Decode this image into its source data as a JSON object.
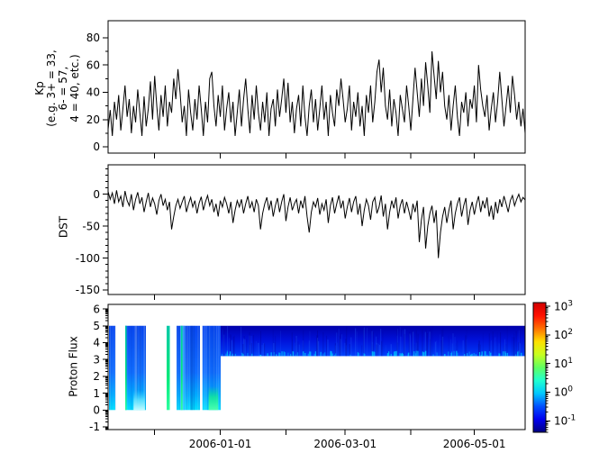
{
  "figure": {
    "background": "#ffffff",
    "line_color": "#000000"
  },
  "panels": [
    {
      "name": "kp",
      "ylabel": "Kp\n(e.g. 3+ = 33,\n6- = 57,\n4 = 40, etc.)",
      "yticks": [
        0,
        20,
        40,
        60,
        80
      ],
      "ytick_labels": [
        "0",
        "20",
        "40",
        "60",
        "80"
      ],
      "yminor": [
        10,
        30,
        50,
        70
      ],
      "ylim": [
        -4.6,
        92.5
      ]
    },
    {
      "name": "dst",
      "ylabel": "DST",
      "yticks": [
        0,
        -50,
        -100,
        -150
      ],
      "ytick_labels": [
        "0",
        "-50",
        "-100",
        "-150"
      ],
      "yminor": [
        40,
        30,
        20,
        10,
        -10,
        -20,
        -30,
        -40,
        -60,
        -70,
        -80,
        -90,
        -110,
        -120,
        -130,
        -140
      ],
      "ylim": [
        -157,
        46
      ]
    },
    {
      "name": "proton_flux",
      "ylabel": "Proton Flux",
      "yticks": [
        -1,
        0,
        1,
        2,
        3,
        4,
        5,
        6
      ],
      "ytick_labels": [
        "-1",
        "0",
        "1",
        "2",
        "3",
        "4",
        "5",
        "6"
      ],
      "log_minors": true,
      "ylim": [
        -1.16,
        6.27
      ]
    }
  ],
  "xaxis": {
    "xlim_days": [
      0,
      197
    ],
    "ticks_days": [
      22,
      53,
      84,
      112,
      143,
      173
    ],
    "tick_labels": [
      "",
      "2006-01-01",
      "",
      "2006-03-01",
      "",
      "2006-05-01"
    ]
  },
  "colorbar": {
    "scale": "log",
    "colormap": "jet",
    "tick_exponents": [
      3,
      2,
      1,
      0,
      -1
    ],
    "tick_label_base": "10",
    "exp_range": [
      -1.4,
      3.13
    ],
    "gradient_bottom_to_top": [
      "#000080",
      "#0000f0",
      "#0050ff",
      "#00c8ff",
      "#20ffd0",
      "#60ff60",
      "#c8ff20",
      "#ffe000",
      "#ff7000",
      "#ff1000",
      "#d00000"
    ]
  },
  "chart_data": [
    {
      "type": "line",
      "series_name": "Kp",
      "x_unit": "days (0 = left edge, axis ticks at listed tick days)",
      "color": "#000000",
      "values": [
        13,
        27,
        8,
        33,
        20,
        38,
        12,
        28,
        45,
        22,
        35,
        10,
        30,
        18,
        42,
        25,
        8,
        37,
        15,
        28,
        48,
        20,
        52,
        30,
        12,
        38,
        22,
        45,
        15,
        33,
        25,
        50,
        35,
        57,
        40,
        18,
        30,
        8,
        42,
        25,
        12,
        35,
        20,
        45,
        28,
        8,
        33,
        18,
        50,
        55,
        30,
        15,
        38,
        22,
        45,
        12,
        28,
        40,
        18,
        33,
        8,
        25,
        42,
        15,
        35,
        50,
        28,
        10,
        38,
        20,
        45,
        25,
        12,
        33,
        18,
        40,
        8,
        28,
        35,
        15,
        42,
        22,
        35,
        50,
        25,
        47,
        18,
        33,
        10,
        28,
        38,
        15,
        45,
        22,
        8,
        30,
        42,
        18,
        35,
        12,
        28,
        45,
        20,
        33,
        8,
        38,
        25,
        15,
        42,
        30,
        50,
        35,
        18,
        28,
        45,
        12,
        33,
        22,
        40,
        15,
        30,
        8,
        38,
        25,
        45,
        18,
        33,
        55,
        64,
        40,
        58,
        30,
        20,
        42,
        15,
        35,
        25,
        8,
        38,
        28,
        18,
        45,
        30,
        12,
        35,
        58,
        40,
        22,
        50,
        30,
        62,
        45,
        25,
        70,
        52,
        35,
        63,
        40,
        55,
        30,
        20,
        38,
        12,
        30,
        45,
        22,
        8,
        33,
        25,
        40,
        15,
        35,
        28,
        45,
        18,
        60,
        42,
        30,
        22,
        38,
        12,
        28,
        40,
        18,
        33,
        55,
        35,
        15,
        30,
        45,
        25,
        52,
        38,
        20,
        33,
        15,
        28,
        10
      ]
    },
    {
      "type": "line",
      "series_name": "DST",
      "x_unit": "days (0 = left edge, axis ticks at listed tick days)",
      "color": "#000000",
      "values": [
        4,
        -8,
        2,
        -15,
        6,
        -12,
        -3,
        -20,
        5,
        -10,
        -18,
        0,
        -25,
        -8,
        3,
        -15,
        -5,
        -28,
        -12,
        2,
        -20,
        -6,
        -15,
        -32,
        -10,
        0,
        -18,
        -8,
        -25,
        -12,
        -55,
        -35,
        -18,
        -8,
        -22,
        -12,
        -3,
        -28,
        -15,
        -5,
        -20,
        -10,
        -30,
        -14,
        -4,
        -25,
        -12,
        -2,
        -18,
        -8,
        -28,
        -15,
        -35,
        -10,
        -20,
        -5,
        -15,
        -30,
        -12,
        -45,
        -25,
        -10,
        -20,
        -8,
        -30,
        -15,
        -3,
        -22,
        -12,
        -28,
        -8,
        -18,
        -55,
        -30,
        -15,
        -5,
        -25,
        -10,
        -35,
        -18,
        -6,
        -28,
        -12,
        0,
        -42,
        -20,
        -5,
        -25,
        -15,
        -8,
        -30,
        -10,
        -22,
        -3,
        -35,
        -60,
        -28,
        -12,
        -20,
        -6,
        -32,
        -15,
        -25,
        -8,
        -45,
        -18,
        -5,
        -30,
        -15,
        -2,
        -22,
        -10,
        -38,
        -20,
        -6,
        -28,
        -12,
        -3,
        -32,
        -15,
        -50,
        -25,
        -8,
        -18,
        -40,
        -12,
        -5,
        -30,
        -20,
        -2,
        -35,
        -15,
        -55,
        -28,
        -10,
        -22,
        -5,
        -38,
        -18,
        -8,
        -30,
        -12,
        -25,
        -40,
        -15,
        -28,
        -10,
        -75,
        -40,
        -20,
        -85,
        -50,
        -30,
        -18,
        -45,
        -25,
        -100,
        -60,
        -35,
        -20,
        -45,
        -25,
        -10,
        -55,
        -30,
        -15,
        -5,
        -35,
        -18,
        -6,
        -48,
        -25,
        -12,
        -32,
        -15,
        -3,
        -28,
        -10,
        -22,
        -5,
        -35,
        -18,
        -40,
        -12,
        -30,
        -8,
        -20,
        -3,
        -15,
        -28,
        -10,
        -2,
        -18,
        -8,
        0,
        -12,
        -5,
        -9
      ]
    },
    {
      "type": "heatmap",
      "series_name": "Proton Flux",
      "x_unit": "days (0 = left edge, axis ticks at listed tick days)",
      "value_scale": "log10 flux, colorbar 1e-1 .. 1e3",
      "colors": {
        "column_gradient_top_to_bottom": [
          "#0846f0",
          "#0f6dff",
          "#00aaff",
          "#00e0ff"
        ],
        "band_gradient_top_to_bottom": [
          "#0000aa",
          "#0010d8",
          "#0030f0",
          "#0048ff"
        ],
        "green": "#00e87a",
        "cyan_speckle": "#00b4ff"
      },
      "segments": [
        {
          "start_day": 0.43,
          "end_day": 3.4,
          "v_bottom": 0,
          "v_top": 5,
          "style": "column"
        },
        {
          "start_day": 8.09,
          "end_day": 17.87,
          "v_bottom": 0,
          "v_top": 5,
          "style": "column",
          "green_left_edge": true,
          "bright_blob_days": [
            12.0,
            17.4
          ],
          "bright_blob_vmax": 1.2
        },
        {
          "start_day": 27.66,
          "end_day": 29.15,
          "v_bottom": 0,
          "v_top": 5,
          "style": "green_strip"
        },
        {
          "start_day": 32.34,
          "end_day": 43.4,
          "v_bottom": 0,
          "v_top": 5,
          "style": "column",
          "green_streak_day": 34.8,
          "cyan_halo_days": [
            34.0,
            36.3
          ]
        },
        {
          "start_day": 44.55,
          "end_day": 53.19,
          "v_bottom": 0,
          "v_top": 5,
          "style": "column",
          "green_blob_days": [
            47.5,
            52.0
          ],
          "green_blob_vmax": 1.4
        },
        {
          "start_day": 53.19,
          "end_day": 197,
          "v_bottom": 3.2,
          "v_top": 5,
          "style": "band",
          "note": "dark blue band with lighter striations and cyan speckles along bottom edge"
        }
      ]
    }
  ]
}
